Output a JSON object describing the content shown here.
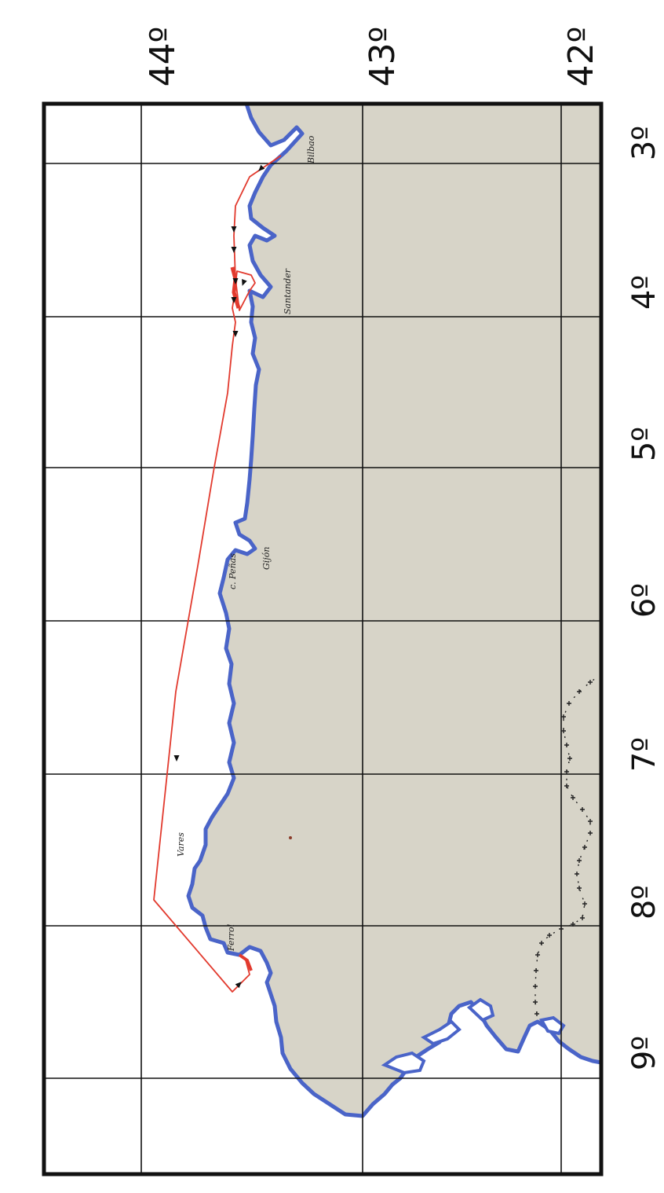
{
  "map": {
    "latitude_labels": [
      "44º",
      "43º",
      "42º"
    ],
    "longitude_labels": [
      "3º",
      "4º",
      "5º",
      "6º",
      "7º",
      "8º",
      "9º"
    ],
    "places": {
      "bilbao": "Bilbao",
      "santander": "Santander",
      "gijon": "Gijón",
      "c_penas": "c. Peñas",
      "vares": "Vares",
      "ferrol": "Ferrol"
    },
    "colors": {
      "land": "#d7d4c8",
      "coast": "#4a64c8",
      "sea": "#ffffff",
      "route": "#e23a2e",
      "grid": "#111111",
      "border_marks": "#222222"
    },
    "route_direction_marks": 9,
    "icons": [
      "route-arrow-icon",
      "border-cross-icon"
    ]
  }
}
